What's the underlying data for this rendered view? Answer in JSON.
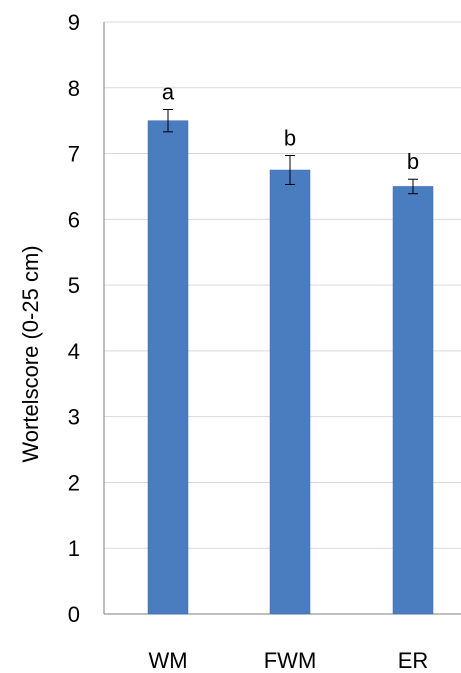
{
  "chart_data": {
    "type": "bar",
    "title": "",
    "xlabel": "",
    "ylabel": "Wortelscore (0-25 cm)",
    "categories": [
      "WM",
      "FWM",
      "ER"
    ],
    "values": [
      7.5,
      6.75,
      6.5
    ],
    "error": [
      0.17,
      0.22,
      0.11
    ],
    "annotations": [
      "a",
      "b",
      "b"
    ],
    "ylim": [
      0,
      9
    ],
    "yticks": [
      "0",
      "1",
      "2",
      "3",
      "4",
      "5",
      "6",
      "7",
      "8",
      "9"
    ],
    "grid": true,
    "legend": "none",
    "colors": {
      "bar": "#4a7cc0",
      "bar_edge": "#3c6aa8",
      "grid": "#d9d9d9",
      "axis": "#7f7f7f",
      "error_bar": "#000000"
    }
  }
}
